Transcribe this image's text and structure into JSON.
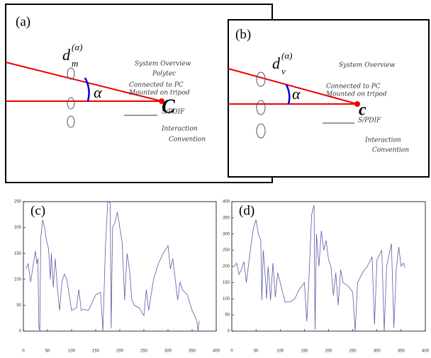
{
  "panels": [
    {
      "label": "(a)",
      "d": "d",
      "sub": "m",
      "sup": "(α)",
      "alpha": "α",
      "center": "C",
      "notes": [
        "System Overview",
        "Polytec",
        "Connected to PC",
        "Mounted on tripod",
        "S/PDIF",
        "Interaction",
        "Convention"
      ]
    },
    {
      "label": "(b)",
      "d": "d",
      "sub": "v",
      "sup": "(α)",
      "alpha": "α",
      "center": "c",
      "notes": [
        "System Overview",
        "Connected to PC",
        "Mounted on tripod",
        "S/PDIF",
        "Interaction",
        "Convention"
      ]
    }
  ],
  "chart_data": [
    {
      "type": "line",
      "title": "(c)",
      "color": "#5b5ba8",
      "xlim": [
        0,
        400
      ],
      "xticks": [
        0,
        50,
        100,
        150,
        200,
        250,
        300,
        350,
        400
      ],
      "ylim": [
        0,
        250
      ],
      "yticks": [
        0,
        50,
        100,
        150,
        200,
        250
      ],
      "x": [
        5,
        10,
        15,
        20,
        25,
        28,
        30,
        32,
        34,
        36,
        40,
        44,
        48,
        52,
        56,
        58,
        62,
        66,
        70,
        75,
        80,
        85,
        90,
        95,
        100,
        110,
        115,
        120,
        125,
        135,
        150,
        160,
        165,
        170,
        175,
        180,
        182,
        185,
        190,
        195,
        200,
        205,
        210,
        215,
        220,
        225,
        230,
        240,
        250,
        255,
        260,
        270,
        280,
        290,
        300,
        305,
        310,
        320,
        325,
        330,
        340,
        350,
        360,
        362,
        365
      ],
      "values": [
        120,
        130,
        95,
        125,
        155,
        130,
        140,
        10,
        0,
        180,
        215,
        200,
        175,
        160,
        100,
        150,
        85,
        140,
        90,
        40,
        95,
        110,
        100,
        70,
        40,
        45,
        80,
        40,
        42,
        40,
        70,
        75,
        0,
        160,
        250,
        248,
        5,
        200,
        210,
        230,
        200,
        170,
        60,
        150,
        120,
        60,
        50,
        45,
        30,
        80,
        40,
        100,
        130,
        150,
        165,
        120,
        140,
        60,
        95,
        80,
        70,
        40,
        20,
        0,
        20
      ]
    },
    {
      "type": "line",
      "title": "(d)",
      "color": "#5b5ba8",
      "xlim": [
        0,
        400
      ],
      "xticks": [
        0,
        50,
        100,
        150,
        200,
        250,
        300,
        350,
        400
      ],
      "ylim": [
        0,
        400
      ],
      "yticks": [
        0,
        50,
        100,
        150,
        200,
        250,
        300,
        350,
        400
      ],
      "x": [
        5,
        10,
        15,
        20,
        25,
        30,
        40,
        45,
        50,
        55,
        60,
        62,
        65,
        70,
        72,
        75,
        78,
        80,
        85,
        90,
        95,
        100,
        110,
        120,
        130,
        140,
        150,
        155,
        160,
        165,
        170,
        172,
        175,
        180,
        185,
        190,
        195,
        200,
        205,
        210,
        215,
        220,
        225,
        230,
        240,
        250,
        255,
        260,
        270,
        280,
        290,
        295,
        300,
        310,
        315,
        320,
        330,
        335,
        340,
        345,
        350,
        355,
        358
      ],
      "values": [
        200,
        210,
        175,
        190,
        215,
        150,
        270,
        320,
        345,
        300,
        280,
        95,
        250,
        150,
        100,
        200,
        150,
        95,
        210,
        105,
        180,
        150,
        90,
        90,
        100,
        130,
        150,
        30,
        180,
        360,
        390,
        5,
        300,
        200,
        310,
        250,
        280,
        220,
        200,
        110,
        180,
        80,
        190,
        150,
        140,
        120,
        0,
        150,
        180,
        200,
        230,
        20,
        220,
        250,
        0,
        200,
        270,
        10,
        190,
        260,
        200,
        210,
        195
      ]
    }
  ]
}
